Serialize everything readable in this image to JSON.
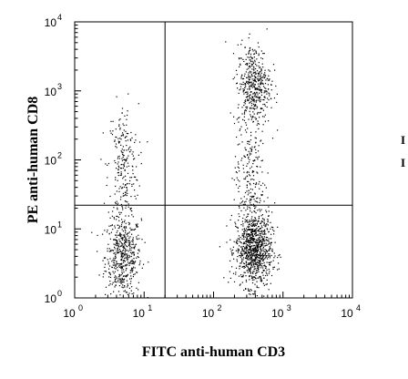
{
  "chart_data": {
    "type": "scatter",
    "title": "",
    "xlabel": "FITC anti-human CD3",
    "ylabel": "PE anti-human CD8",
    "x_scale": "log",
    "y_scale": "log",
    "xlim": [
      1,
      10000
    ],
    "ylim": [
      1,
      10000
    ],
    "x_ticks": [
      {
        "base": "10",
        "exp": "0"
      },
      {
        "base": "10",
        "exp": "1"
      },
      {
        "base": "10",
        "exp": "2"
      },
      {
        "base": "10",
        "exp": "3"
      },
      {
        "base": "10",
        "exp": "4"
      }
    ],
    "y_ticks": [
      {
        "base": "10",
        "exp": "0"
      },
      {
        "base": "10",
        "exp": "1"
      },
      {
        "base": "10",
        "exp": "2"
      },
      {
        "base": "10",
        "exp": "3"
      },
      {
        "base": "10",
        "exp": "4"
      }
    ],
    "quadrant_gates": {
      "x": 20,
      "y": 22
    },
    "grid": false,
    "legend": "none",
    "point_color": "#000000",
    "populations": [
      {
        "name": "",
        "center": [
          5,
          4
        ],
        "spread": [
          0.13,
          0.3
        ],
        "count": 520
      },
      {
        "name": "",
        "center": [
          5,
          80
        ],
        "spread": [
          0.11,
          0.45
        ],
        "count": 240
      },
      {
        "name": "",
        "center": [
          380,
          5
        ],
        "spread": [
          0.13,
          0.27
        ],
        "count": 950
      },
      {
        "name": "",
        "center": [
          380,
          1200
        ],
        "spread": [
          0.12,
          0.3
        ],
        "count": 480
      },
      {
        "name": "",
        "center": [
          330,
          60
        ],
        "spread": [
          0.11,
          0.4
        ],
        "count": 200
      }
    ],
    "edge_text": [
      "I",
      "I"
    ]
  }
}
